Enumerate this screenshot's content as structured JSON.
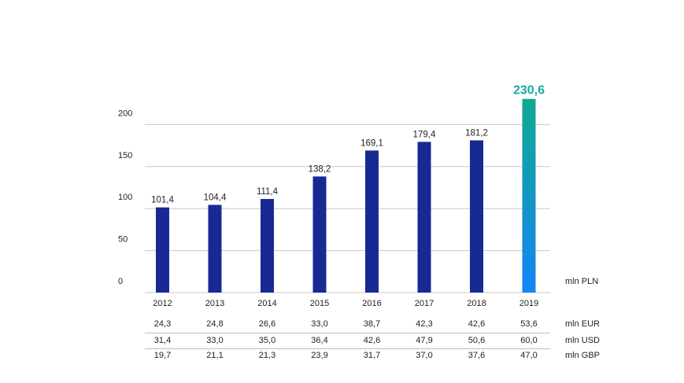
{
  "chart_data": {
    "type": "bar",
    "categories": [
      "2012",
      "2013",
      "2014",
      "2015",
      "2016",
      "2017",
      "2018",
      "2019"
    ],
    "values": [
      101.4,
      104.4,
      111.4,
      138.2,
      169.1,
      179.4,
      181.2,
      230.6
    ],
    "value_labels": [
      "101,4",
      "104,4",
      "111,4",
      "138,2",
      "169,1",
      "179,4",
      "181,2",
      "230,6"
    ],
    "yticks": [
      "0",
      "50",
      "100",
      "150",
      "200"
    ],
    "ylim": [
      0,
      250
    ],
    "unit_label": "mln PLN",
    "highlight_index": 7,
    "grid": true,
    "colors": {
      "bar": "#172a94",
      "highlight_top": "#12a892",
      "highlight_bottom": "#1385f5",
      "highlight_label": "#1aa89a",
      "grid": "#c8c8c8"
    }
  },
  "table": {
    "rows": [
      {
        "unit": "mln EUR",
        "values": [
          "24,3",
          "24,8",
          "26,6",
          "33,0",
          "38,7",
          "42,3",
          "42,6",
          "53,6"
        ]
      },
      {
        "unit": "mln USD",
        "values": [
          "31,4",
          "33,0",
          "35,0",
          "36,4",
          "42,6",
          "47,9",
          "50,6",
          "60,0"
        ]
      },
      {
        "unit": "mln GBP",
        "values": [
          "19,7",
          "21,1",
          "21,3",
          "23,9",
          "31,7",
          "37,0",
          "37,6",
          "47,0"
        ]
      }
    ]
  }
}
